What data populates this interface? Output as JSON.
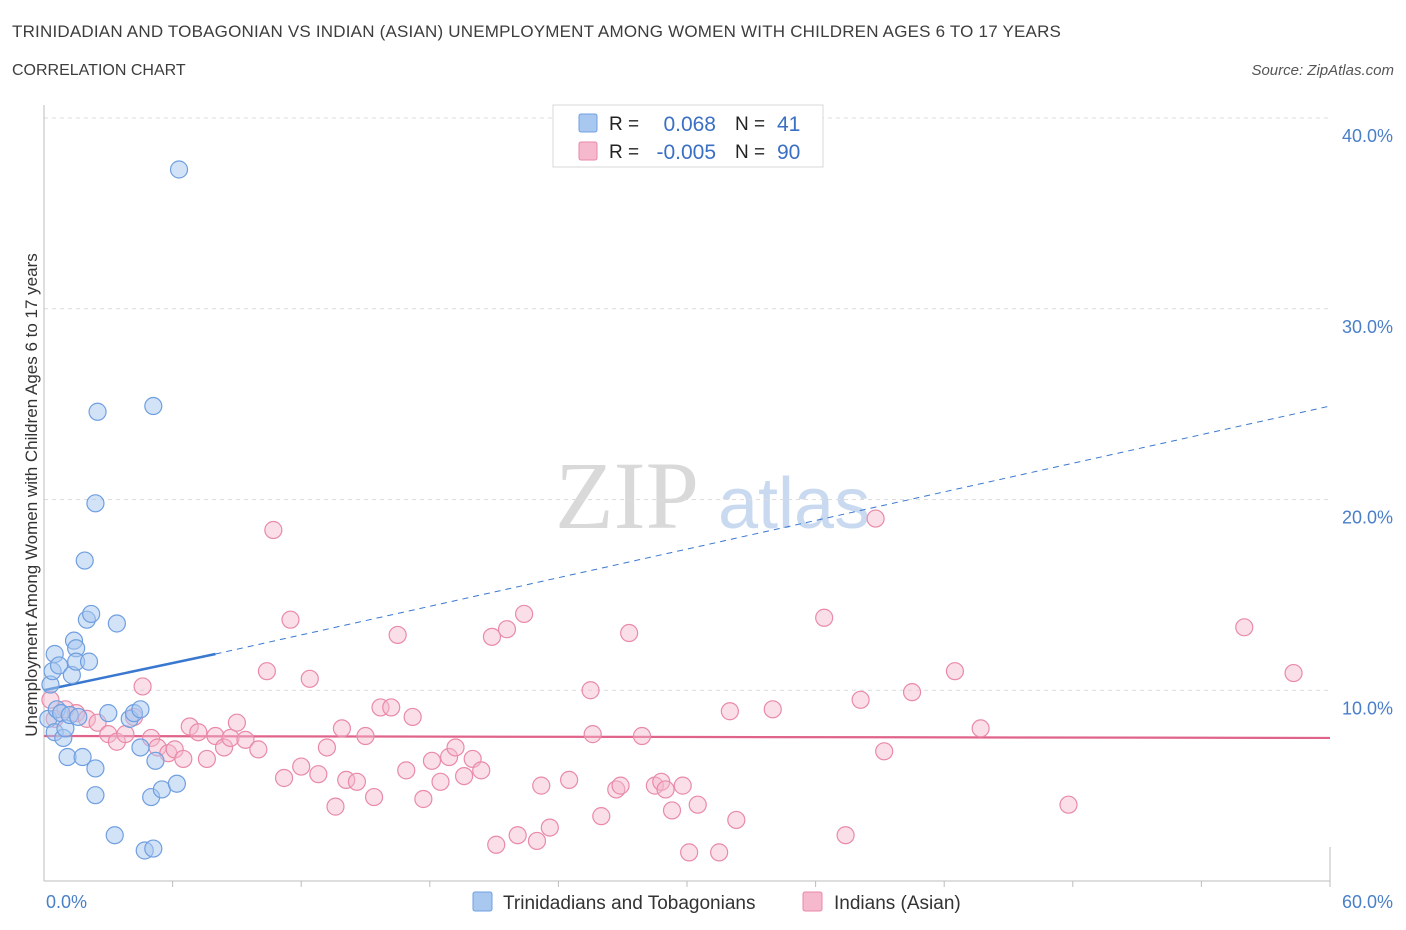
{
  "title": "TRINIDADIAN AND TOBAGONIAN VS INDIAN (ASIAN) UNEMPLOYMENT AMONG WOMEN WITH CHILDREN AGES 6 TO 17 YEARS",
  "subtitle": "CORRELATION CHART",
  "source": "Source: ZipAtlas.com",
  "watermark": {
    "zip": "ZIP",
    "atlas": "atlas"
  },
  "legend_box": {
    "rows": [
      {
        "r_label": "R =",
        "r_value": "0.068",
        "n_label": "N =",
        "n_value": "41"
      },
      {
        "r_label": "R =",
        "r_value": "-0.005",
        "n_label": "N =",
        "n_value": "90"
      }
    ]
  },
  "bottom_legend": [
    "Trinidadians and Tobagonians",
    "Indians (Asian)"
  ],
  "colors": {
    "blue_fill": "#a8c8f0",
    "blue_stroke": "#6f9fe0",
    "blue_line": "#3a78d0",
    "pink_fill": "#f5b8cc",
    "pink_stroke": "#e98aa8",
    "pink_line": "#e0648a",
    "grid": "#dcdcdc",
    "tick_text": "#4a7fc8"
  },
  "chart_data": {
    "type": "scatter",
    "title": "TRINIDADIAN AND TOBAGONIAN VS INDIAN (ASIAN) UNEMPLOYMENT AMONG WOMEN WITH CHILDREN AGES 6 TO 17 YEARS",
    "xlabel": "",
    "ylabel": "Unemployment Among Women with Children Ages 6 to 17 years",
    "xlim": [
      0,
      60
    ],
    "ylim": [
      0,
      40
    ],
    "x_tick_labels": [
      "0.0%",
      "60.0%"
    ],
    "y_tick_values": [
      10,
      20,
      30,
      40
    ],
    "y_tick_labels": [
      "10.0%",
      "20.0%",
      "30.0%",
      "40.0%"
    ],
    "grid": true,
    "legend_position": "top-center",
    "series": [
      {
        "name": "Trinidadians and Tobagonians",
        "R": 0.068,
        "N": 41,
        "trend": {
          "x": [
            0,
            8
          ],
          "y": [
            10.0,
            11.9
          ],
          "dashed_to": [
            60,
            24.9
          ]
        },
        "points": [
          [
            0.2,
            8.5
          ],
          [
            0.3,
            10.3
          ],
          [
            0.4,
            11.0
          ],
          [
            0.5,
            11.9
          ],
          [
            0.5,
            7.8
          ],
          [
            0.6,
            9.0
          ],
          [
            0.7,
            11.3
          ],
          [
            0.8,
            8.8
          ],
          [
            0.9,
            7.5
          ],
          [
            1.0,
            8.0
          ],
          [
            1.1,
            6.5
          ],
          [
            1.2,
            8.7
          ],
          [
            1.3,
            10.8
          ],
          [
            1.4,
            12.6
          ],
          [
            1.5,
            12.2
          ],
          [
            1.5,
            11.5
          ],
          [
            1.6,
            8.6
          ],
          [
            1.8,
            6.5
          ],
          [
            1.9,
            16.8
          ],
          [
            2.0,
            13.7
          ],
          [
            2.1,
            11.5
          ],
          [
            2.2,
            14.0
          ],
          [
            2.5,
            24.6
          ],
          [
            2.4,
            4.5
          ],
          [
            2.4,
            5.9
          ],
          [
            2.4,
            19.8
          ],
          [
            3.0,
            8.8
          ],
          [
            3.3,
            2.4
          ],
          [
            3.4,
            13.5
          ],
          [
            4.0,
            8.5
          ],
          [
            4.2,
            8.8
          ],
          [
            4.5,
            7.0
          ],
          [
            4.5,
            9.0
          ],
          [
            4.7,
            1.6
          ],
          [
            5.0,
            4.4
          ],
          [
            5.1,
            1.7
          ],
          [
            5.2,
            6.3
          ],
          [
            5.5,
            4.8
          ],
          [
            5.1,
            24.9
          ],
          [
            6.2,
            5.1
          ],
          [
            6.3,
            37.3
          ]
        ]
      },
      {
        "name": "Indians (Asian)",
        "R": -0.005,
        "N": 90,
        "trend": {
          "x": [
            0,
            60
          ],
          "y": [
            7.6,
            7.5
          ]
        },
        "points": [
          [
            0.5,
            8.5
          ],
          [
            1.0,
            9.0
          ],
          [
            1.5,
            8.8
          ],
          [
            2.0,
            8.5
          ],
          [
            2.5,
            8.3
          ],
          [
            3.0,
            7.7
          ],
          [
            3.4,
            7.3
          ],
          [
            3.8,
            7.7
          ],
          [
            4.2,
            8.6
          ],
          [
            4.6,
            10.2
          ],
          [
            5.0,
            7.5
          ],
          [
            5.3,
            7.0
          ],
          [
            5.8,
            6.7
          ],
          [
            6.1,
            6.9
          ],
          [
            6.5,
            6.4
          ],
          [
            6.8,
            8.1
          ],
          [
            7.2,
            7.8
          ],
          [
            7.6,
            6.4
          ],
          [
            8.0,
            7.6
          ],
          [
            8.4,
            7.0
          ],
          [
            8.7,
            7.5
          ],
          [
            9.0,
            8.3
          ],
          [
            9.4,
            7.4
          ],
          [
            10.0,
            6.9
          ],
          [
            10.4,
            11.0
          ],
          [
            10.7,
            18.4
          ],
          [
            11.2,
            5.4
          ],
          [
            11.5,
            13.7
          ],
          [
            12.0,
            6.0
          ],
          [
            12.4,
            10.6
          ],
          [
            12.8,
            5.6
          ],
          [
            13.2,
            7.0
          ],
          [
            13.6,
            3.9
          ],
          [
            13.9,
            8.0
          ],
          [
            14.1,
            5.3
          ],
          [
            14.6,
            5.2
          ],
          [
            15.0,
            7.6
          ],
          [
            15.4,
            4.4
          ],
          [
            15.7,
            9.1
          ],
          [
            16.2,
            9.1
          ],
          [
            16.5,
            12.9
          ],
          [
            16.9,
            5.8
          ],
          [
            17.2,
            8.6
          ],
          [
            17.7,
            4.3
          ],
          [
            18.1,
            6.3
          ],
          [
            18.5,
            5.2
          ],
          [
            18.9,
            6.5
          ],
          [
            19.2,
            7.0
          ],
          [
            19.6,
            5.5
          ],
          [
            20.0,
            6.4
          ],
          [
            20.4,
            5.8
          ],
          [
            20.9,
            12.8
          ],
          [
            21.1,
            1.9
          ],
          [
            21.6,
            13.2
          ],
          [
            22.1,
            2.4
          ],
          [
            22.4,
            14.0
          ],
          [
            23.0,
            2.1
          ],
          [
            23.2,
            5.0
          ],
          [
            23.6,
            2.8
          ],
          [
            24.5,
            5.3
          ],
          [
            25.5,
            10.0
          ],
          [
            25.6,
            7.7
          ],
          [
            26.0,
            3.4
          ],
          [
            26.7,
            4.8
          ],
          [
            26.9,
            5.0
          ],
          [
            27.3,
            13.0
          ],
          [
            27.9,
            7.6
          ],
          [
            28.5,
            5.0
          ],
          [
            28.8,
            5.2
          ],
          [
            29.0,
            4.8
          ],
          [
            29.3,
            3.7
          ],
          [
            29.8,
            5.0
          ],
          [
            30.1,
            1.5
          ],
          [
            30.5,
            4.0
          ],
          [
            31.5,
            1.5
          ],
          [
            32.0,
            8.9
          ],
          [
            32.3,
            3.2
          ],
          [
            34.0,
            9.0
          ],
          [
            36.4,
            13.8
          ],
          [
            37.4,
            2.4
          ],
          [
            38.1,
            9.5
          ],
          [
            38.8,
            19.0
          ],
          [
            39.2,
            6.8
          ],
          [
            40.5,
            9.9
          ],
          [
            42.5,
            11.0
          ],
          [
            43.7,
            8.0
          ],
          [
            47.8,
            4.0
          ],
          [
            56.0,
            13.3
          ],
          [
            58.3,
            10.9
          ],
          [
            0.3,
            9.5
          ]
        ]
      }
    ]
  }
}
